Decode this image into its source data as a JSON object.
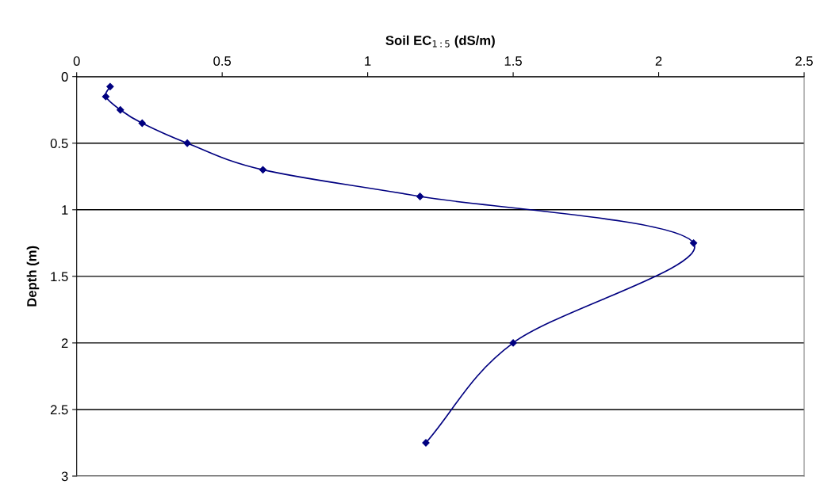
{
  "chart_data": {
    "type": "line",
    "xlabel": "Soil EC$_{1:5}$ (dS/m)",
    "ylabel": "Depth (m)",
    "x": [
      0.115,
      0.1,
      0.15,
      0.225,
      0.38,
      0.64,
      1.18,
      2.12,
      1.5,
      1.2
    ],
    "series": [
      {
        "color": "#000080",
        "values": [
          0.075,
          0.15,
          0.25,
          0.35,
          0.5,
          0.7,
          0.9,
          1.25,
          2.0,
          2.75
        ]
      }
    ],
    "xlim": [
      0,
      2.5
    ],
    "xticks": [
      0,
      0.5,
      1,
      1.5,
      2,
      2.5
    ],
    "ylim": [
      3,
      0
    ],
    "yticks": [
      0,
      0.5,
      1,
      1.5,
      2,
      2.5,
      3
    ],
    "grid": "y",
    "legend": false,
    "marker": "diamond",
    "line_style": "solid"
  }
}
